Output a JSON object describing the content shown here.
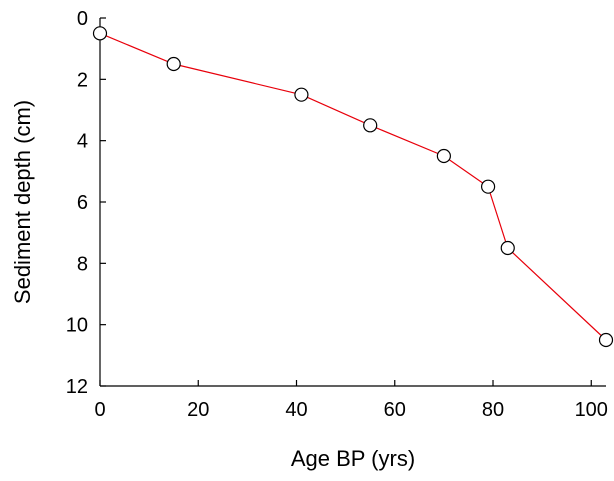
{
  "chart_data": {
    "type": "line",
    "xlabel": "Age BP (yrs)",
    "ylabel": "Sediment depth (cm)",
    "xlim": [
      0,
      103
    ],
    "ylim": [
      0,
      12
    ],
    "y_inverted": true,
    "x_ticks": [
      0,
      20,
      40,
      60,
      80,
      100
    ],
    "y_ticks": [
      0,
      2,
      4,
      6,
      8,
      10,
      12
    ],
    "grid": false,
    "line_color": "#e8000b",
    "marker": "open-circle",
    "series": [
      {
        "x": [
          0,
          15,
          41,
          55,
          70,
          79,
          83,
          103
        ],
        "y": [
          0.5,
          1.5,
          2.5,
          3.5,
          4.5,
          5.5,
          7.5,
          10.5
        ]
      }
    ]
  }
}
